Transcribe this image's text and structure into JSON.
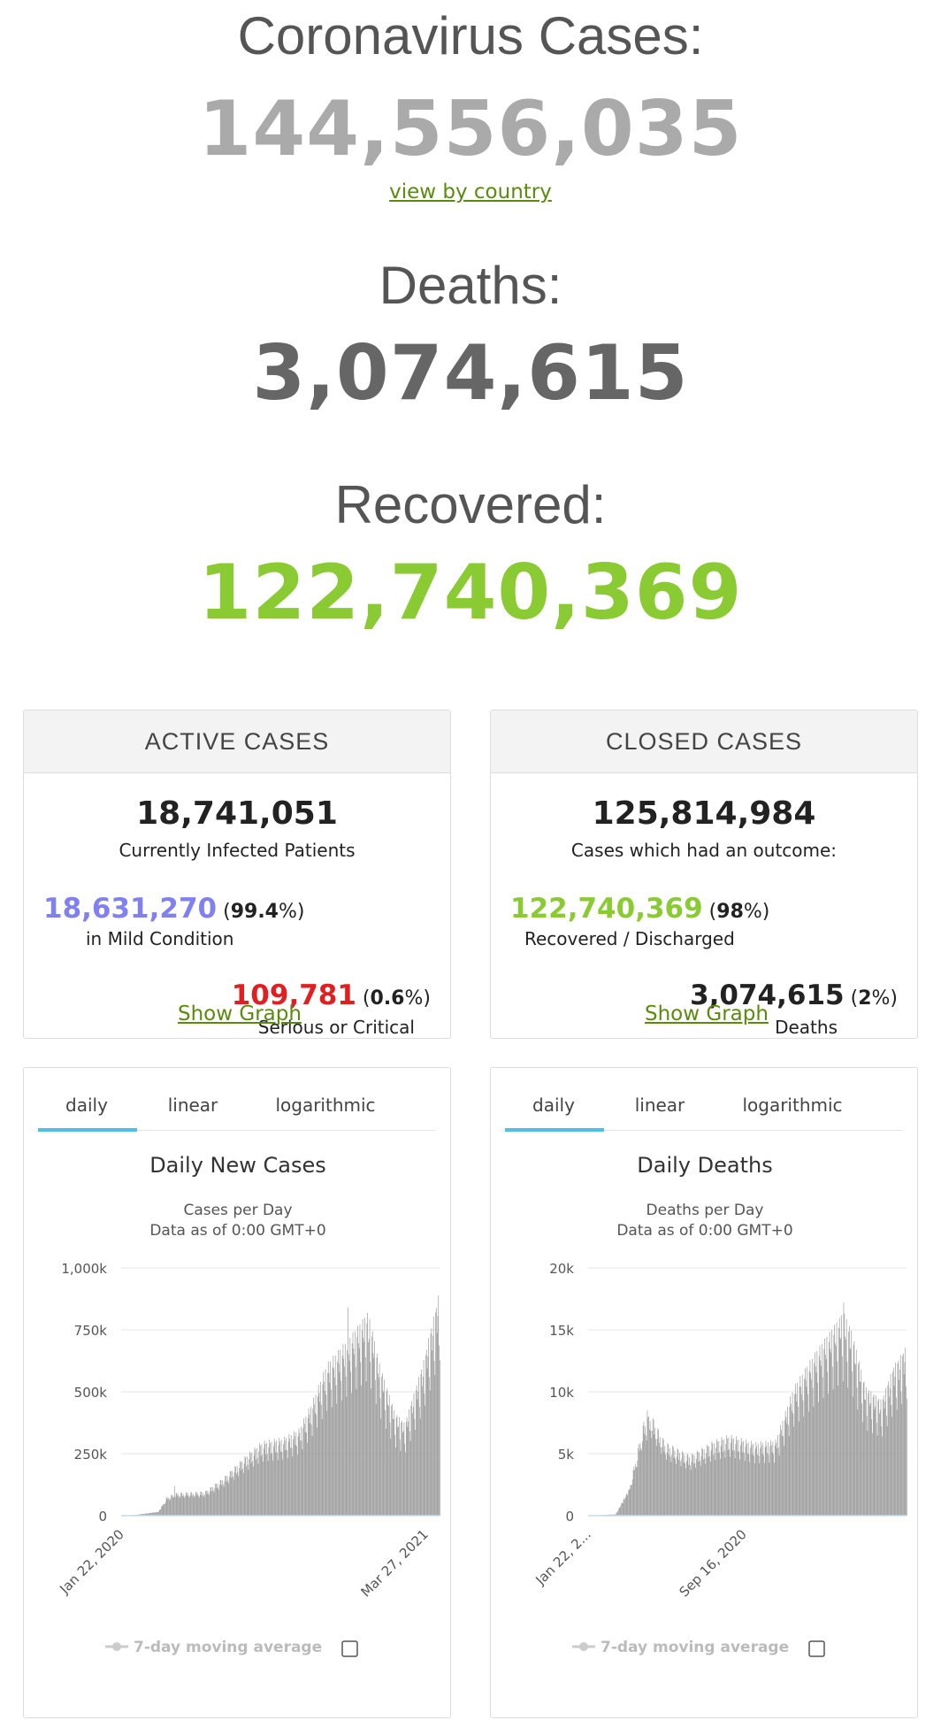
{
  "header": {
    "cases_label": "Coronavirus Cases:",
    "cases_value": "144,556,035",
    "view_link": "view by country",
    "deaths_label": "Deaths:",
    "deaths_value": "3,074,615",
    "recovered_label": "Recovered:",
    "recovered_value": "122,740,369"
  },
  "colors": {
    "cases": "#aaaaaa",
    "deaths": "#666666",
    "recovered": "#8aca33",
    "mild": "#8080f0",
    "critical": "#e02020",
    "link": "#5b8b0d",
    "tab_accent": "#4fbfe2",
    "bars": "#999999"
  },
  "active": {
    "title": "ACTIVE CASES",
    "total": "18,741,051",
    "total_label": "Currently Infected Patients",
    "mild_value": "18,631,270",
    "mild_open": " (",
    "mild_pct": "99.4",
    "mild_close": "%)",
    "mild_label": "in Mild Condition",
    "critical_value": "109,781",
    "critical_open": " (",
    "critical_pct": "0.6",
    "critical_close": "%)",
    "critical_label": "Serious or Critical",
    "show_graph": "Show Graph"
  },
  "closed": {
    "title": "CLOSED CASES",
    "total": "125,814,984",
    "total_label": "Cases which had an outcome:",
    "recovered_value": "122,740,369",
    "recovered_open": " (",
    "recovered_pct": "98",
    "recovered_close": "%)",
    "recovered_label": "Recovered / Discharged",
    "deaths_value": "3,074,615",
    "deaths_open": " (",
    "deaths_pct": "2",
    "deaths_close": "%)",
    "deaths_label": "Deaths",
    "show_graph": "Show Graph"
  },
  "tabs": [
    "daily",
    "linear",
    "logarithmic"
  ],
  "chart_data": [
    {
      "type": "bar",
      "title": "Daily New Cases",
      "subtitle_line1": "Cases per Day",
      "subtitle_line2": "Data as of 0:00 GMT+0",
      "ylim": [
        0,
        1000000
      ],
      "y_ticks": [
        0,
        250000,
        500000,
        750000,
        1000000
      ],
      "y_tick_labels": [
        "0",
        "250k",
        "500k",
        "750k",
        "1,000k"
      ],
      "x_tick_labels": [
        "Jan 22, 2020",
        "Mar 27, 2021"
      ],
      "x_range": [
        "2020-01-22",
        "2021-04-20"
      ],
      "grid": true,
      "legend": "7-day moving average",
      "anchors": [
        [
          "2020-01-22",
          0
        ],
        [
          "2020-02-12",
          3000
        ],
        [
          "2020-03-15",
          15000
        ],
        [
          "2020-03-27",
          70000
        ],
        [
          "2020-04-10",
          85000
        ],
        [
          "2020-05-20",
          90000
        ],
        [
          "2020-06-15",
          140000
        ],
        [
          "2020-07-20",
          230000
        ],
        [
          "2020-08-10",
          275000
        ],
        [
          "2020-09-10",
          290000
        ],
        [
          "2020-10-01",
          320000
        ],
        [
          "2020-10-20",
          420000
        ],
        [
          "2020-11-10",
          560000
        ],
        [
          "2020-12-10",
          650000
        ],
        [
          "2021-01-08",
          750000
        ],
        [
          "2021-01-25",
          550000
        ],
        [
          "2021-02-15",
          380000
        ],
        [
          "2021-03-01",
          340000
        ],
        [
          "2021-03-27",
          560000
        ],
        [
          "2021-04-10",
          720000
        ],
        [
          "2021-04-20",
          830000
        ]
      ],
      "spikes": [
        [
          "2020-04-07",
          120000
        ],
        [
          "2020-12-10",
          840000
        ],
        [
          "2021-01-08",
          700000
        ]
      ]
    },
    {
      "type": "bar",
      "title": "Daily Deaths",
      "subtitle_line1": "Deaths per Day",
      "subtitle_line2": "Data as of 0:00 GMT+0",
      "ylim": [
        0,
        20000
      ],
      "y_ticks": [
        0,
        5000,
        10000,
        15000,
        20000
      ],
      "y_tick_labels": [
        "0",
        "5k",
        "10k",
        "15k",
        "20k"
      ],
      "x_tick_labels": [
        "Jan 22, 2...",
        "Sep 16, 2020"
      ],
      "x_range": [
        "2020-01-22",
        "2021-04-20"
      ],
      "grid": true,
      "legend": "7-day moving average",
      "anchors": [
        [
          "2020-01-22",
          0
        ],
        [
          "2020-03-01",
          100
        ],
        [
          "2020-03-20",
          2000
        ],
        [
          "2020-04-10",
          7000
        ],
        [
          "2020-04-20",
          7600
        ],
        [
          "2020-05-10",
          5500
        ],
        [
          "2020-06-15",
          4500
        ],
        [
          "2020-07-20",
          5600
        ],
        [
          "2020-08-10",
          6000
        ],
        [
          "2020-09-16",
          5400
        ],
        [
          "2020-10-15",
          5600
        ],
        [
          "2020-11-10",
          9500
        ],
        [
          "2020-12-10",
          12000
        ],
        [
          "2021-01-20",
          15000
        ],
        [
          "2021-02-01",
          13500
        ],
        [
          "2021-02-20",
          9500
        ],
        [
          "2021-03-15",
          8500
        ],
        [
          "2021-04-01",
          11000
        ],
        [
          "2021-04-20",
          12500
        ]
      ],
      "spikes": [
        [
          "2021-01-20",
          17200
        ],
        [
          "2020-04-15",
          8500
        ]
      ]
    }
  ]
}
